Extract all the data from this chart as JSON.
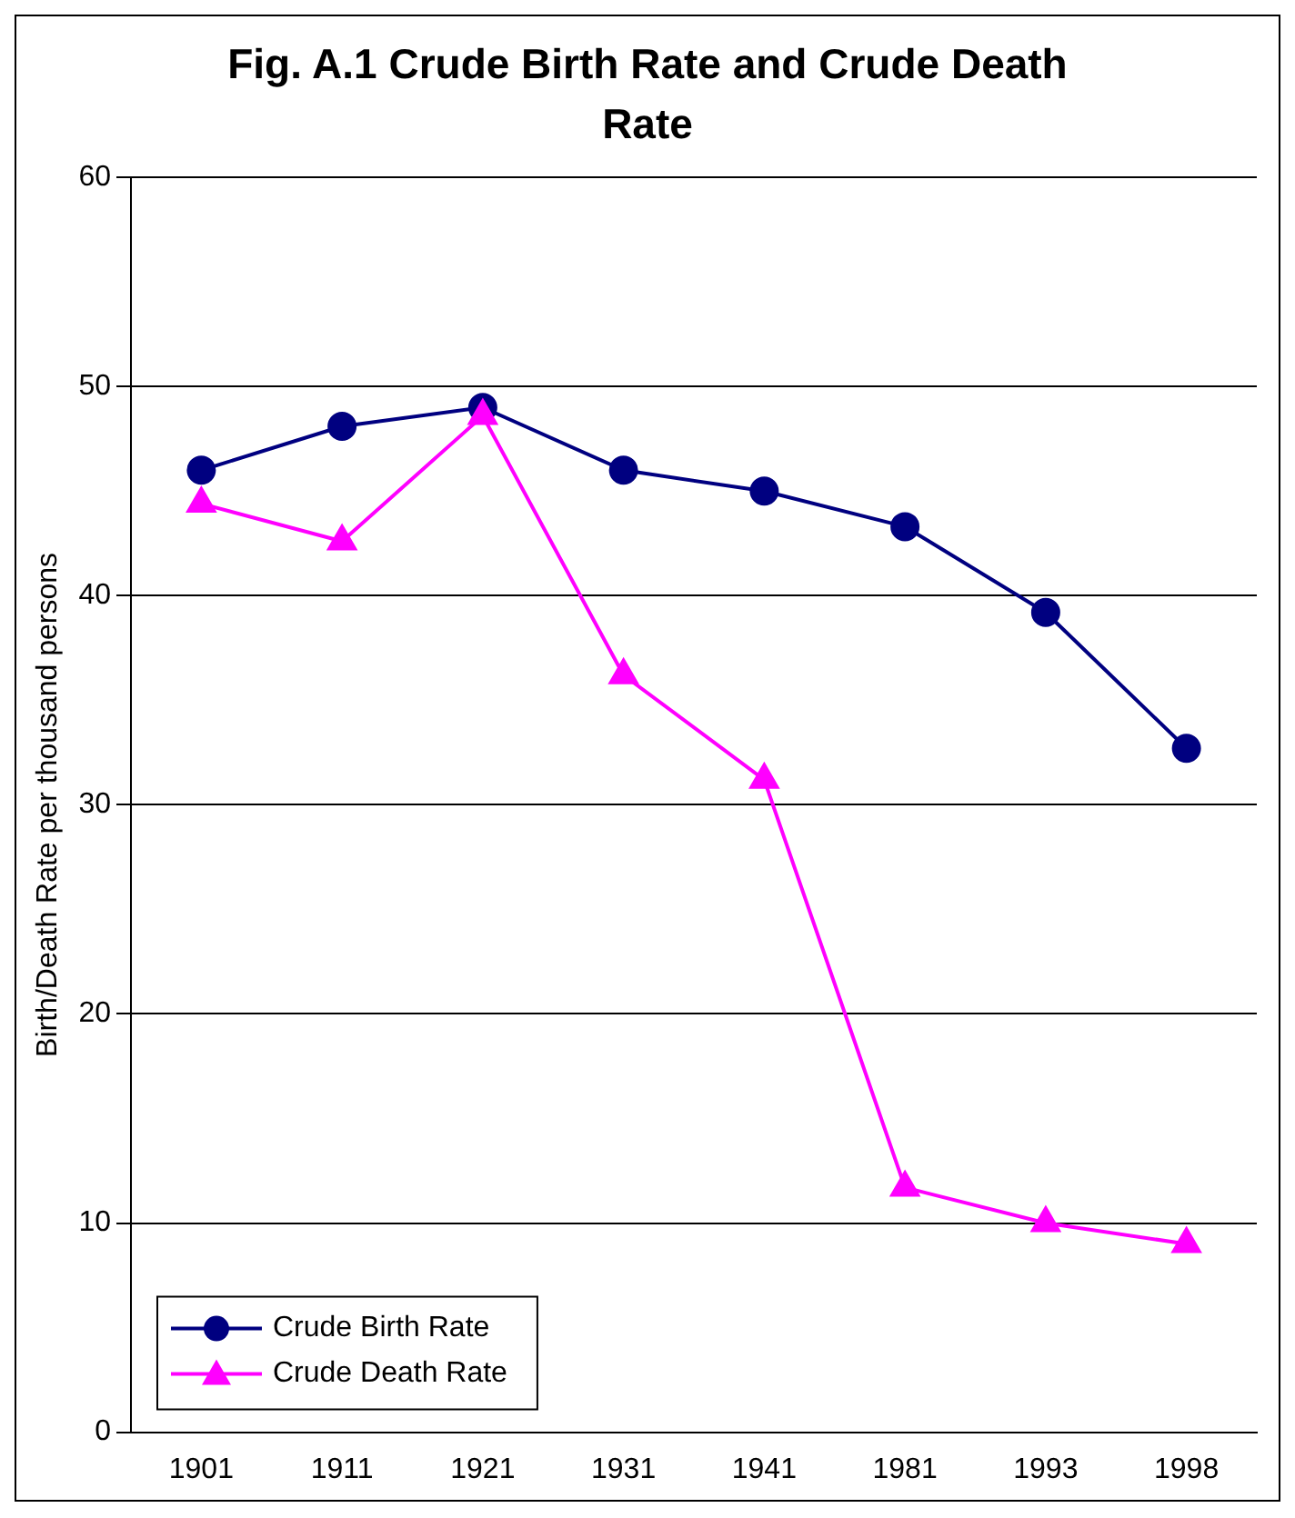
{
  "chart_data": {
    "type": "line",
    "title": "Fig. A.1  Crude Birth Rate and Crude Death Rate",
    "ylabel": "Birth/Death Rate per thousand persons",
    "categories": [
      "1901",
      "1911",
      "1921",
      "1931",
      "1941",
      "1981",
      "1993",
      "1998"
    ],
    "series": [
      {
        "name": "Crude Birth Rate",
        "color": "#000080",
        "marker": "circle",
        "values": [
          46,
          48.1,
          49,
          46,
          45,
          43.3,
          39.2,
          32.7
        ]
      },
      {
        "name": "Crude Death Rate",
        "color": "#ff00ff",
        "marker": "triangle",
        "values": [
          44.4,
          42.6,
          48.6,
          36.2,
          31.2,
          11.7,
          10,
          9
        ]
      }
    ],
    "ylim": [
      0,
      60
    ],
    "yticks": [
      0,
      10,
      20,
      30,
      40,
      50,
      60
    ],
    "grid": "y",
    "legend": "bottom left",
    "line_style": "solid"
  }
}
